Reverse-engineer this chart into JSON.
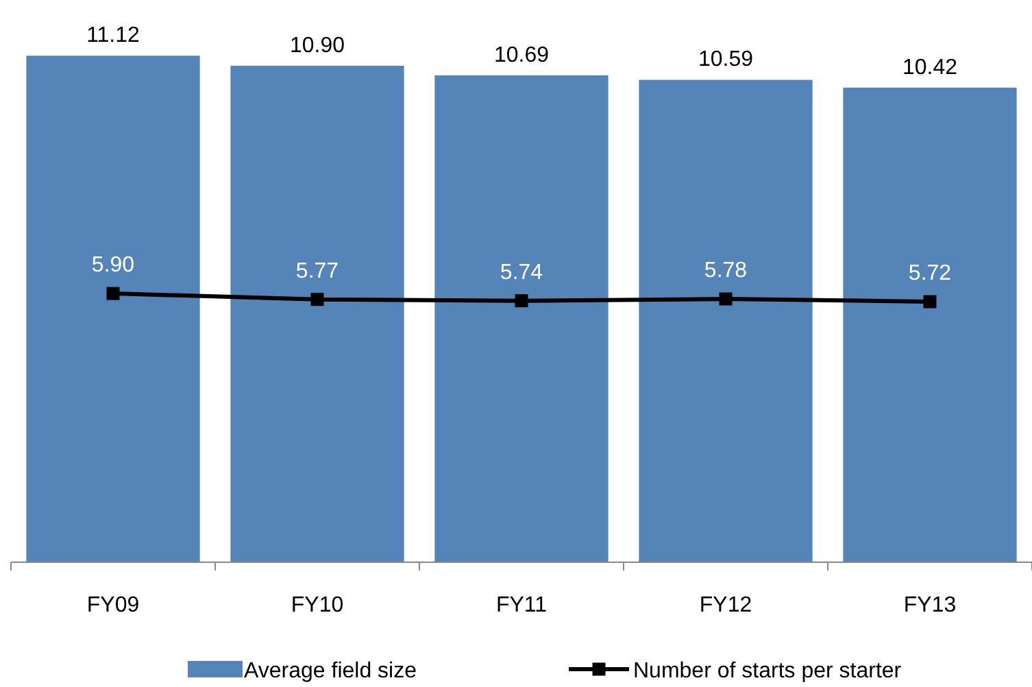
{
  "chart_data": {
    "type": "bar",
    "categories": [
      "FY09",
      "FY10",
      "FY11",
      "FY12",
      "FY13"
    ],
    "series": [
      {
        "name": "Average field size",
        "color": "#5585b8",
        "values": [
          11.12,
          10.9,
          10.69,
          10.59,
          10.42
        ],
        "value_labels": [
          "11.12",
          "10.90",
          "10.69",
          "10.59",
          "10.42"
        ]
      },
      {
        "name": "Number of starts per starter",
        "type": "line",
        "color": "#000000",
        "values": [
          5.9,
          5.77,
          5.74,
          5.78,
          5.72
        ],
        "value_labels": [
          "5.90",
          "5.77",
          "5.74",
          "5.78",
          "5.72"
        ]
      }
    ],
    "legend": "bottom",
    "marker": "square",
    "line_style": "solid"
  }
}
